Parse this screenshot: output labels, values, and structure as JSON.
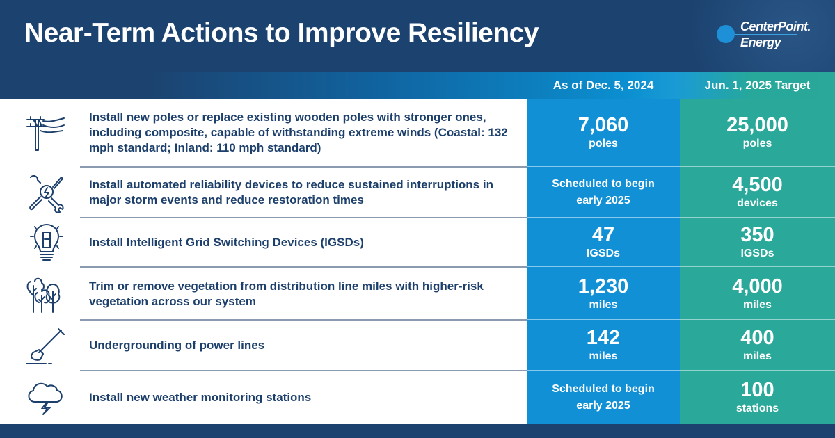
{
  "header": {
    "title": "Near-Term Actions to Improve Resiliency",
    "logo": {
      "line1": "CenterPoint.",
      "line2": "Energy"
    }
  },
  "columns": {
    "current": "As of Dec. 5, 2024",
    "target": "Jun. 1, 2025 Target"
  },
  "colors": {
    "navy": "#1c4370",
    "blue": "#1190d6",
    "teal": "#2aa89a",
    "text": "#1c3f6b"
  },
  "rows": [
    {
      "icon": "utility-pole-icon",
      "text": "Install new poles or replace existing wooden poles with stronger ones, including composite, capable of withstanding extreme winds (Coastal: 132 mph standard; Inland: 110 mph standard)",
      "current": {
        "value": "7,060",
        "unit": "poles"
      },
      "target": {
        "value": "25,000",
        "unit": "poles"
      }
    },
    {
      "icon": "tools-lightning-icon",
      "text": "Install automated reliability devices to reduce sustained interruptions in major storm events and reduce restoration times",
      "current": {
        "line1": "Scheduled to begin",
        "line2": "early 2025"
      },
      "target": {
        "value": "4,500",
        "unit": "devices"
      }
    },
    {
      "icon": "lightbulb-switch-icon",
      "text": "Install Intelligent Grid Switching Devices (IGSDs)",
      "current": {
        "value": "47",
        "unit": "IGSDs"
      },
      "target": {
        "value": "350",
        "unit": "IGSDs"
      }
    },
    {
      "icon": "trees-icon",
      "text": "Trim or remove vegetation from distribution line miles with higher-risk vegetation across our system",
      "current": {
        "value": "1,230",
        "unit": "miles"
      },
      "target": {
        "value": "4,000",
        "unit": "miles"
      }
    },
    {
      "icon": "shovel-icon",
      "text": "Undergrounding of power lines",
      "current": {
        "value": "142",
        "unit": "miles"
      },
      "target": {
        "value": "400",
        "unit": "miles"
      }
    },
    {
      "icon": "storm-cloud-icon",
      "text": "Install new weather monitoring stations",
      "current": {
        "line1": "Scheduled to begin",
        "line2": "early 2025"
      },
      "target": {
        "value": "100",
        "unit": "stations"
      }
    }
  ]
}
